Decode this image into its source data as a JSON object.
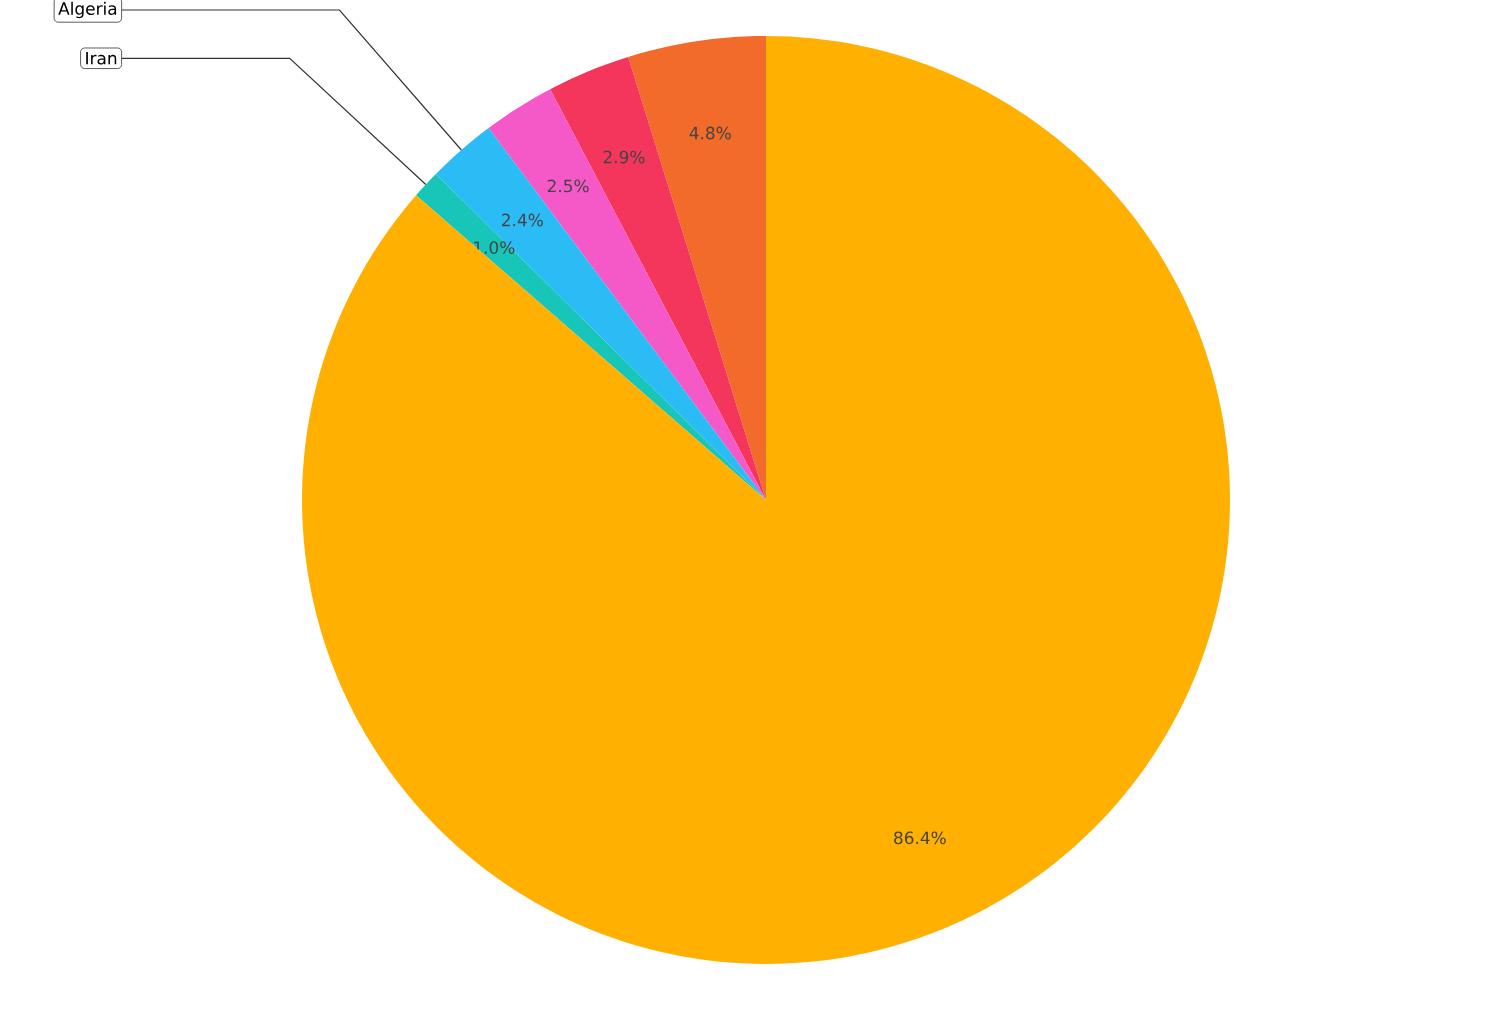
{
  "chart_data": {
    "type": "pie",
    "categories": [
      null,
      null,
      null,
      "Algeria",
      "Iran",
      null
    ],
    "values": [
      4.8,
      2.9,
      2.5,
      2.4,
      1.0,
      86.4
    ],
    "value_labels": [
      "4.8%",
      "2.9%",
      "2.5%",
      "2.4%",
      "1.0%",
      "86.4%"
    ],
    "colors": [
      "#f26b2a",
      "#f5365c",
      "#f558c7",
      "#2cbcf5",
      "#17c6b8",
      "#ffb000"
    ]
  }
}
